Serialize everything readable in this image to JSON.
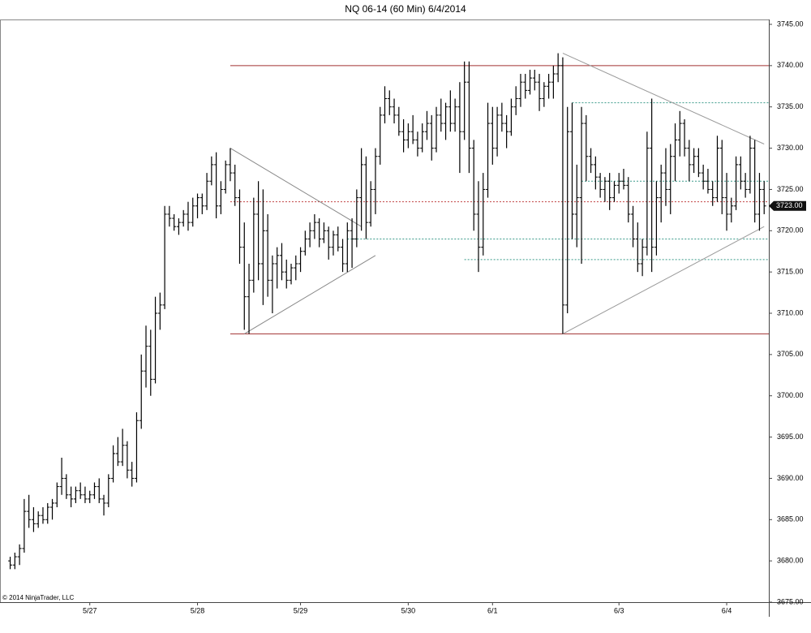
{
  "chart_data": {
    "type": "ohlc",
    "title": "NQ 06-14 (60 Min)  6/4/2014",
    "copyright": "© 2014 NinjaTrader, LLC",
    "color": "#000000",
    "ylim": [
      3675,
      3745
    ],
    "yticks": [
      {
        "value": 3675,
        "label": "3675.00"
      },
      {
        "value": 3680,
        "label": "3680.00"
      },
      {
        "value": 3685,
        "label": "3685.00"
      },
      {
        "value": 3690,
        "label": "3690.00"
      },
      {
        "value": 3695,
        "label": "3695.00"
      },
      {
        "value": 3700,
        "label": "3700.00"
      },
      {
        "value": 3705,
        "label": "3705.00"
      },
      {
        "value": 3710,
        "label": "3710.00"
      },
      {
        "value": 3715,
        "label": "3715.00"
      },
      {
        "value": 3720,
        "label": "3720.00"
      },
      {
        "value": 3725,
        "label": "3725.00"
      },
      {
        "value": 3730,
        "label": "3730.00"
      },
      {
        "value": 3735,
        "label": "3735.00"
      },
      {
        "value": 3740,
        "label": "3740.00"
      },
      {
        "value": 3745,
        "label": "3745.00"
      }
    ],
    "xlim": [
      -2,
      162
    ],
    "xticks": [
      {
        "value": 17,
        "label": "5/27"
      },
      {
        "value": 40,
        "label": "5/28"
      },
      {
        "value": 62,
        "label": "5/29"
      },
      {
        "value": 85,
        "label": "5/30"
      },
      {
        "value": 103,
        "label": "6/1"
      },
      {
        "value": 130,
        "label": "6/3"
      },
      {
        "value": 153,
        "label": "6/4"
      }
    ],
    "last_price": {
      "value": 3723,
      "label": "3723.00"
    },
    "hlines": [
      {
        "value": 3740,
        "from": 47,
        "color": "#a03030",
        "dash": ""
      },
      {
        "value": 3707.5,
        "from": 47,
        "color": "#a03030",
        "dash": ""
      },
      {
        "value": 3723.5,
        "from": 47,
        "color": "#c04040",
        "dash": "2,2"
      },
      {
        "value": 3735.5,
        "from": 120,
        "color": "#3a9a8a",
        "dash": "2,2"
      },
      {
        "value": 3726,
        "from": 122,
        "color": "#3a9a8a",
        "dash": "2,2"
      },
      {
        "value": 3719,
        "from": 72,
        "color": "#3a9a8a",
        "dash": "2,2"
      },
      {
        "value": 3716.5,
        "from": 97,
        "color": "#3a9a8a",
        "dash": "2,2"
      }
    ],
    "trendlines": [
      {
        "x": [
          47,
          75
        ],
        "y": [
          3730,
          3720.5
        ],
        "color": "#888888"
      },
      {
        "x": [
          50,
          78
        ],
        "y": [
          3707.5,
          3717
        ],
        "color": "#888888"
      },
      {
        "x": [
          118,
          161
        ],
        "y": [
          3741.5,
          3730.5
        ],
        "color": "#999999"
      },
      {
        "x": [
          118,
          161
        ],
        "y": [
          3707.5,
          3720.5
        ],
        "color": "#999999"
      }
    ],
    "bars": [
      [
        3680,
        3680.5,
        3679,
        3679.5
      ],
      [
        3679.5,
        3681,
        3679,
        3680.5
      ],
      [
        3680.5,
        3682,
        3679.5,
        3681.5
      ],
      [
        3681.5,
        3687.5,
        3681,
        3686
      ],
      [
        3686,
        3688,
        3684,
        3685
      ],
      [
        3685,
        3686.5,
        3683.5,
        3684.5
      ],
      [
        3684.5,
        3686,
        3684,
        3685.5
      ],
      [
        3685.5,
        3686.5,
        3684.5,
        3685
      ],
      [
        3685,
        3687,
        3684.5,
        3686.5
      ],
      [
        3686.5,
        3687.5,
        3685,
        3687
      ],
      [
        3687,
        3689.5,
        3686.5,
        3689
      ],
      [
        3689,
        3692.5,
        3688,
        3690
      ],
      [
        3690,
        3690.5,
        3687.5,
        3688
      ],
      [
        3688,
        3689,
        3686.5,
        3687.5
      ],
      [
        3687.5,
        3689,
        3687,
        3688.5
      ],
      [
        3688.5,
        3689.5,
        3687.5,
        3688
      ],
      [
        3688,
        3689,
        3687,
        3687.5
      ],
      [
        3687.5,
        3688.5,
        3687,
        3688
      ],
      [
        3688,
        3689.5,
        3687.5,
        3689
      ],
      [
        3689,
        3690,
        3687,
        3687.5
      ],
      [
        3687.5,
        3688,
        3685.5,
        3687
      ],
      [
        3687,
        3690.5,
        3686.5,
        3690
      ],
      [
        3690,
        3694,
        3689.5,
        3693
      ],
      [
        3693,
        3695,
        3691.5,
        3692
      ],
      [
        3692,
        3696,
        3691.5,
        3694
      ],
      [
        3694,
        3694.5,
        3690,
        3691
      ],
      [
        3691,
        3692,
        3689,
        3690
      ],
      [
        3690,
        3698,
        3689.5,
        3697
      ],
      [
        3697,
        3705,
        3696,
        3703
      ],
      [
        3703,
        3708.5,
        3701,
        3706
      ],
      [
        3706,
        3708,
        3700,
        3702
      ],
      [
        3702,
        3712,
        3701.5,
        3710
      ],
      [
        3710,
        3712.5,
        3708,
        3711
      ],
      [
        3711,
        3723,
        3710.5,
        3722
      ],
      [
        3722,
        3723,
        3720.5,
        3721.5
      ],
      [
        3721.5,
        3722,
        3720,
        3720.5
      ],
      [
        3720.5,
        3721.5,
        3719.5,
        3721
      ],
      [
        3721,
        3722.5,
        3720.5,
        3722
      ],
      [
        3722,
        3723.5,
        3720,
        3721
      ],
      [
        3721,
        3724,
        3720.5,
        3723
      ],
      [
        3723,
        3724.5,
        3721.5,
        3724
      ],
      [
        3724,
        3724.5,
        3722,
        3723
      ],
      [
        3723,
        3727,
        3722.5,
        3726
      ],
      [
        3726,
        3729,
        3725.5,
        3728
      ],
      [
        3728,
        3729.5,
        3721.5,
        3723
      ],
      [
        3723,
        3726,
        3722,
        3725
      ],
      [
        3725,
        3728.5,
        3724.5,
        3728
      ],
      [
        3728,
        3730,
        3726,
        3727
      ],
      [
        3727,
        3728,
        3723,
        3724
      ],
      [
        3724,
        3725,
        3716,
        3718
      ],
      [
        3718,
        3721,
        3708,
        3712
      ],
      [
        3712,
        3716,
        3707.5,
        3714
      ],
      [
        3714,
        3724,
        3712.5,
        3722
      ],
      [
        3722,
        3726,
        3714,
        3716
      ],
      [
        3716,
        3725,
        3711,
        3720
      ],
      [
        3720,
        3722,
        3712,
        3714
      ],
      [
        3714,
        3717,
        3710,
        3716
      ],
      [
        3716,
        3718,
        3713,
        3717
      ],
      [
        3717,
        3718.5,
        3714,
        3715
      ],
      [
        3715,
        3716.5,
        3713,
        3714
      ],
      [
        3714,
        3716,
        3713.5,
        3715.5
      ],
      [
        3715.5,
        3717,
        3714,
        3716
      ],
      [
        3716,
        3718,
        3715,
        3717.5
      ],
      [
        3717.5,
        3720,
        3717,
        3719
      ],
      [
        3719,
        3721,
        3718,
        3720
      ],
      [
        3720,
        3722,
        3719,
        3721
      ],
      [
        3721,
        3721.5,
        3718,
        3719
      ],
      [
        3719,
        3721,
        3718.5,
        3720
      ],
      [
        3720,
        3720.5,
        3716.5,
        3718
      ],
      [
        3718,
        3720,
        3717,
        3719.5
      ],
      [
        3719.5,
        3720.5,
        3717.5,
        3718
      ],
      [
        3718,
        3719,
        3715,
        3716
      ],
      [
        3716,
        3721,
        3715,
        3720
      ],
      [
        3720,
        3721.5,
        3715.5,
        3719
      ],
      [
        3719,
        3725,
        3718,
        3724
      ],
      [
        3724,
        3730,
        3720,
        3728
      ],
      [
        3728,
        3729,
        3719,
        3721
      ],
      [
        3721,
        3726,
        3720.5,
        3725
      ],
      [
        3725,
        3730,
        3722,
        3729
      ],
      [
        3729,
        3735,
        3728,
        3734
      ],
      [
        3734,
        3737.5,
        3733,
        3736
      ],
      [
        3736,
        3737,
        3734,
        3735
      ],
      [
        3735,
        3736,
        3733,
        3734
      ],
      [
        3734,
        3735,
        3731.5,
        3732
      ],
      [
        3732,
        3733.5,
        3729.5,
        3731
      ],
      [
        3731,
        3733,
        3730,
        3732
      ],
      [
        3732,
        3734,
        3730.5,
        3731
      ],
      [
        3731,
        3732,
        3729,
        3730
      ],
      [
        3730,
        3733,
        3729.5,
        3732
      ],
      [
        3732,
        3734.5,
        3731,
        3733
      ],
      [
        3733,
        3734,
        3728.5,
        3730
      ],
      [
        3730,
        3735,
        3729.5,
        3734
      ],
      [
        3734,
        3736,
        3732,
        3733
      ],
      [
        3733,
        3735.5,
        3731,
        3735
      ],
      [
        3735,
        3737,
        3732,
        3733
      ],
      [
        3733,
        3736,
        3732,
        3735
      ],
      [
        3735,
        3738,
        3727,
        3732
      ],
      [
        3732,
        3740.5,
        3731,
        3738
      ],
      [
        3738,
        3740.5,
        3727,
        3730
      ],
      [
        3730,
        3731,
        3720,
        3722
      ],
      [
        3722,
        3726,
        3715,
        3718
      ],
      [
        3718,
        3727,
        3717,
        3725
      ],
      [
        3725,
        3735.5,
        3724,
        3733
      ],
      [
        3733,
        3735,
        3728,
        3730
      ],
      [
        3730,
        3735,
        3729,
        3734
      ],
      [
        3734,
        3735.5,
        3732,
        3733
      ],
      [
        3733,
        3734,
        3730,
        3732
      ],
      [
        3732,
        3736,
        3731.5,
        3735
      ],
      [
        3735,
        3737.5,
        3734,
        3736
      ],
      [
        3736,
        3739,
        3735,
        3738
      ],
      [
        3738,
        3739,
        3736,
        3737
      ],
      [
        3737,
        3739.5,
        3736.5,
        3738.5
      ],
      [
        3738.5,
        3739.5,
        3737,
        3738
      ],
      [
        3738,
        3739,
        3734.5,
        3736
      ],
      [
        3736,
        3738,
        3735,
        3737.5
      ],
      [
        3737.5,
        3739,
        3736,
        3738
      ],
      [
        3738,
        3740,
        3736,
        3739
      ],
      [
        3739,
        3741.5,
        3738,
        3740
      ],
      [
        3740,
        3741,
        3707.5,
        3711
      ],
      [
        3711,
        3735,
        3710,
        3732
      ],
      [
        3732,
        3735.5,
        3719,
        3722
      ],
      [
        3722,
        3728,
        3718,
        3724
      ],
      [
        3724,
        3735,
        3716,
        3733
      ],
      [
        3733,
        3734,
        3726,
        3729
      ],
      [
        3729,
        3730,
        3727,
        3728
      ],
      [
        3728,
        3729,
        3725,
        3726.5
      ],
      [
        3726.5,
        3727,
        3724,
        3725
      ],
      [
        3725,
        3726.5,
        3723.5,
        3726
      ],
      [
        3726,
        3727,
        3722.5,
        3724
      ],
      [
        3724,
        3726,
        3723.5,
        3725.5
      ],
      [
        3725.5,
        3727,
        3724.5,
        3726
      ],
      [
        3726,
        3727.5,
        3725,
        3725.5
      ],
      [
        3725.5,
        3726.5,
        3721,
        3722
      ],
      [
        3722,
        3723,
        3718,
        3719
      ],
      [
        3719,
        3721,
        3715,
        3716
      ],
      [
        3716,
        3719,
        3714.5,
        3718
      ],
      [
        3718,
        3732,
        3717,
        3730
      ],
      [
        3730,
        3736,
        3715,
        3718
      ],
      [
        3718,
        3726,
        3717,
        3724
      ],
      [
        3724,
        3728,
        3721,
        3727
      ],
      [
        3727,
        3730,
        3723,
        3725
      ],
      [
        3725,
        3730.5,
        3722,
        3729
      ],
      [
        3729,
        3733,
        3726,
        3731
      ],
      [
        3731,
        3734.5,
        3729,
        3733
      ],
      [
        3733,
        3733.5,
        3729,
        3730
      ],
      [
        3730,
        3731,
        3726,
        3728
      ],
      [
        3728,
        3730,
        3727,
        3729
      ],
      [
        3729,
        3730,
        3726.5,
        3727
      ],
      [
        3727,
        3728,
        3725,
        3726
      ],
      [
        3726,
        3727.5,
        3724.5,
        3725
      ],
      [
        3725,
        3726,
        3723,
        3724
      ],
      [
        3724,
        3731.5,
        3723.5,
        3730
      ],
      [
        3730,
        3731,
        3722,
        3724
      ],
      [
        3724,
        3727,
        3720,
        3722
      ],
      [
        3722,
        3724,
        3721,
        3723
      ],
      [
        3723,
        3729,
        3722.5,
        3728
      ],
      [
        3728,
        3729,
        3725,
        3726
      ],
      [
        3726,
        3727,
        3724,
        3725
      ],
      [
        3725,
        3731.5,
        3724.5,
        3730
      ],
      [
        3730,
        3731,
        3721,
        3722
      ],
      [
        3722,
        3727,
        3720,
        3725
      ],
      [
        3725,
        3726,
        3722,
        3723
      ]
    ]
  }
}
